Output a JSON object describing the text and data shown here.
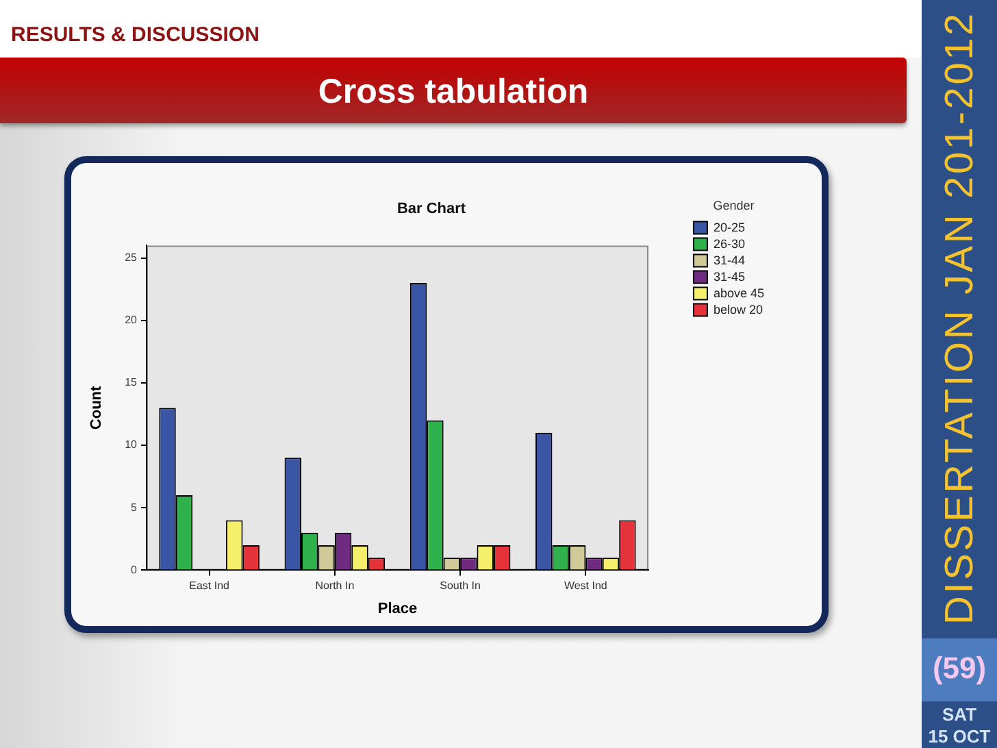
{
  "chart_data": {
    "type": "bar",
    "title": "Cross tabulation",
    "subtitle": "Bar Chart",
    "xlabel": "Place",
    "ylabel": "Count",
    "legend_title": "Gender",
    "categories": [
      "East Ind",
      "North In",
      "South In",
      "West Ind"
    ],
    "series": [
      {
        "name": "20-25",
        "color": "#3b55a5",
        "values": [
          13,
          9,
          23,
          11
        ]
      },
      {
        "name": "26-30",
        "color": "#2fb24b",
        "values": [
          6,
          3,
          12,
          2
        ]
      },
      {
        "name": "31-44",
        "color": "#d0ca98",
        "values": [
          0,
          2,
          1,
          2
        ]
      },
      {
        "name": "31-45",
        "color": "#6e2b80",
        "values": [
          0,
          3,
          1,
          1
        ]
      },
      {
        "name": "above 45",
        "color": "#f6ef6b",
        "values": [
          4,
          2,
          2,
          1
        ]
      },
      {
        "name": "below 20",
        "color": "#e6323b",
        "values": [
          2,
          1,
          2,
          4
        ]
      }
    ],
    "ylim": [
      0,
      26
    ],
    "yticks": [
      0,
      5,
      10,
      15,
      20,
      25
    ],
    "grid": false,
    "legend": "right",
    "annotations": [
      "RESULTS & DISCUSSION",
      "DISSERTATION JAN 201-2012",
      "(59)",
      "SAT",
      "15 OCT"
    ]
  }
}
